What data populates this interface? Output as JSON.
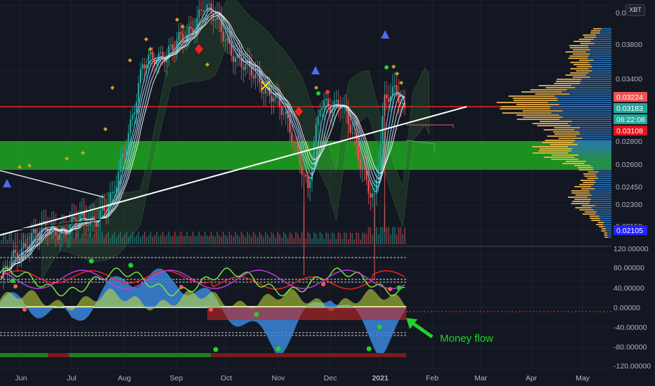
{
  "symbol_button": "XBT",
  "annotation": {
    "text": "Money flow",
    "color": "#22d12a"
  },
  "colors": {
    "background": "#131722",
    "up": "#26a69a",
    "down": "#ef5350",
    "trend_line": "#ffffff",
    "support_zone": "#1f9f1f",
    "resistance_line": "#ff1e1e",
    "volume_profile_up": "#f2b84b",
    "volume_profile_down": "#2f7bc4",
    "money_flow": "#3a86d9"
  },
  "badges": [
    {
      "label": "0.03224",
      "color": "#ef5350"
    },
    {
      "label": "0.03183",
      "color": "#26a69a"
    },
    {
      "label": "06:22:08",
      "color": "#26a69a"
    },
    {
      "label": "0.03108",
      "color": "#e4141b"
    },
    {
      "label": "0.02105",
      "color": "#2323ff"
    }
  ],
  "chart_data": [
    {
      "type": "candlestick",
      "y_axis_ticks": [
        "0.0",
        "0.03800",
        "0.03400",
        "0.02800",
        "0.02600",
        "0.02450",
        "0.02300",
        "0.02150"
      ],
      "x_axis_ticks": [
        "Jun",
        "Jul",
        "Aug",
        "Sep",
        "Oct",
        "Nov",
        "Dec",
        "2021",
        "Feb",
        "Mar",
        "Apr",
        "May"
      ],
      "series": [
        {
          "x": [
            "Jun",
            "Jul",
            "Aug",
            "Sep",
            "Oct",
            "Nov",
            "Dec",
            "2021",
            "Feb"
          ],
          "close": [
            0.0241,
            0.0252,
            0.0355,
            0.0365,
            0.0337,
            0.0285,
            0.032,
            0.0265,
            0.03183
          ]
        }
      ],
      "last_price": 0.03183,
      "support_zone": [
        0.0258,
        0.0278
      ],
      "resistance_level": 0.03165
    },
    {
      "type": "area",
      "title": "",
      "y_axis_ticks": [
        "120.00000",
        "80.00000",
        "40.00000",
        "0.00000",
        "-40.00000",
        "-80.00000",
        "-120.00000"
      ],
      "ylim": [
        -120,
        120
      ],
      "series": [
        {
          "x": [
            "Jun",
            "Jul",
            "Aug",
            "Sep",
            "Oct",
            "Nov",
            "Dec",
            "2021",
            "Feb"
          ],
          "values": [
            10,
            -25,
            60,
            55,
            -5,
            -80,
            35,
            -80,
            30
          ]
        }
      ]
    }
  ]
}
